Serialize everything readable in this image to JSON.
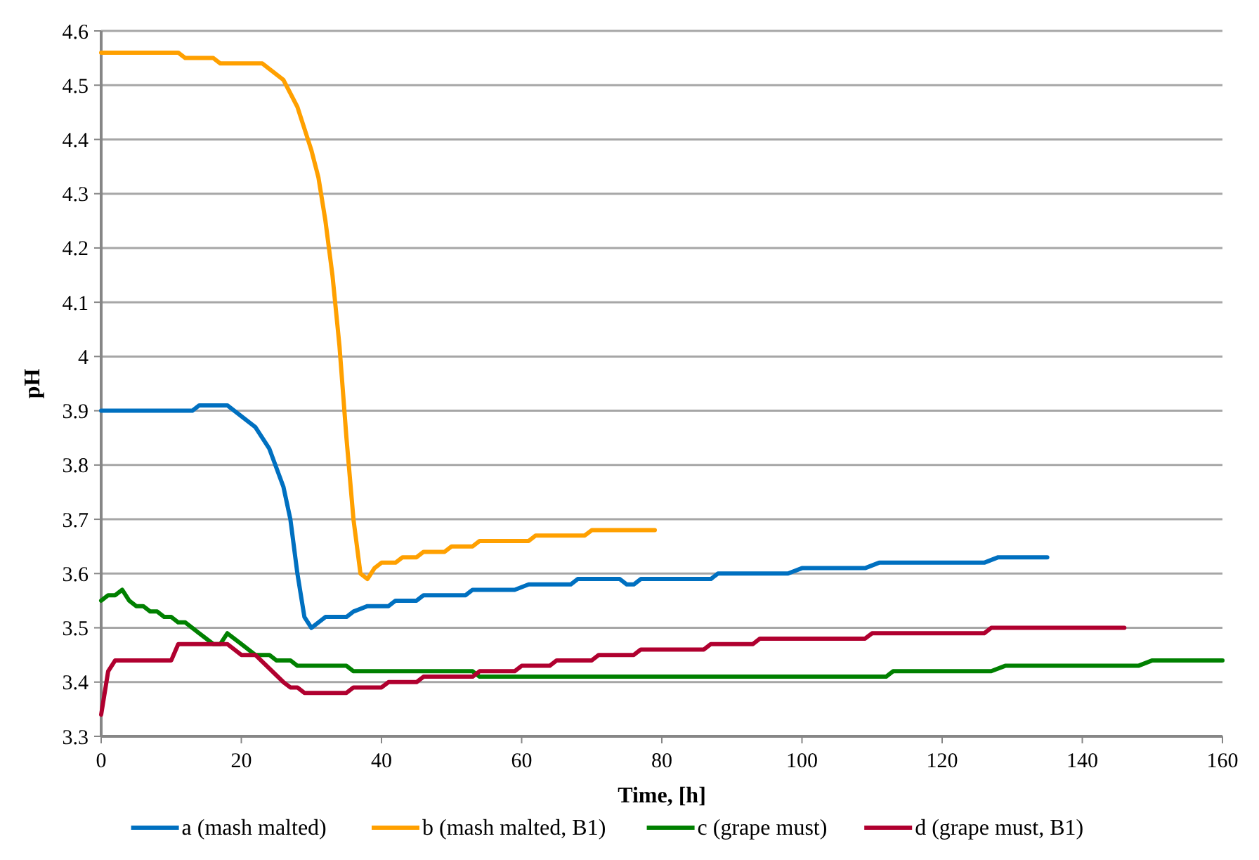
{
  "chart_data": {
    "type": "line",
    "xlabel": "Time, [h]",
    "ylabel": "pH",
    "xlim": [
      0,
      160
    ],
    "xticks": [
      0,
      20,
      40,
      60,
      80,
      100,
      120,
      140,
      160
    ],
    "ylim": [
      3.3,
      4.6
    ],
    "yticks": [
      3.3,
      3.4,
      3.5,
      3.6,
      3.7,
      3.8,
      3.9,
      4,
      4.1,
      4.2,
      4.3,
      4.4,
      4.5,
      4.6
    ],
    "grid": "y",
    "legend": "bottom",
    "marker": "none",
    "line_style": "solid",
    "series": [
      {
        "name": "a  (mash malted)",
        "color": "#0070c0",
        "x": [
          0,
          13,
          14,
          18,
          20,
          22,
          24,
          26,
          27,
          28,
          29,
          30,
          31,
          32,
          35,
          36,
          38,
          41,
          42,
          45,
          46,
          52,
          53,
          59,
          61,
          67,
          68,
          74,
          75,
          76,
          77,
          87,
          88,
          98,
          100,
          109,
          111,
          126,
          128,
          135
        ],
        "values": [
          3.9,
          3.9,
          3.91,
          3.91,
          3.89,
          3.87,
          3.83,
          3.76,
          3.7,
          3.6,
          3.52,
          3.5,
          3.51,
          3.52,
          3.52,
          3.53,
          3.54,
          3.54,
          3.55,
          3.55,
          3.56,
          3.56,
          3.57,
          3.57,
          3.58,
          3.58,
          3.59,
          3.59,
          3.58,
          3.58,
          3.59,
          3.59,
          3.6,
          3.6,
          3.61,
          3.61,
          3.62,
          3.62,
          3.63,
          3.63
        ]
      },
      {
        "name": "b (mash malted, B1)",
        "color": "#ffa000",
        "x": [
          0,
          11,
          12,
          16,
          17,
          23,
          24,
          26,
          28,
          30,
          31,
          32,
          33,
          34,
          35,
          36,
          37,
          38,
          39,
          40,
          42,
          43,
          45,
          46,
          49,
          50,
          53,
          54,
          61,
          62,
          69,
          70,
          79
        ],
        "values": [
          4.56,
          4.56,
          4.55,
          4.55,
          4.54,
          4.54,
          4.53,
          4.51,
          4.46,
          4.38,
          4.33,
          4.25,
          4.15,
          4.02,
          3.85,
          3.7,
          3.6,
          3.59,
          3.61,
          3.62,
          3.62,
          3.63,
          3.63,
          3.64,
          3.64,
          3.65,
          3.65,
          3.66,
          3.66,
          3.67,
          3.67,
          3.68,
          3.68
        ]
      },
      {
        "name": "c (grape must)",
        "color": "#008000",
        "x": [
          0,
          1,
          2,
          3,
          4,
          5,
          6,
          7,
          8,
          9,
          10,
          11,
          12,
          14,
          16,
          17,
          18,
          20,
          22,
          24,
          25,
          27,
          28,
          35,
          36,
          53,
          54,
          112,
          113,
          127,
          129,
          148,
          150,
          160
        ],
        "values": [
          3.55,
          3.56,
          3.56,
          3.57,
          3.55,
          3.54,
          3.54,
          3.53,
          3.53,
          3.52,
          3.52,
          3.51,
          3.51,
          3.49,
          3.47,
          3.47,
          3.49,
          3.47,
          3.45,
          3.45,
          3.44,
          3.44,
          3.43,
          3.43,
          3.42,
          3.42,
          3.41,
          3.41,
          3.42,
          3.42,
          3.43,
          3.43,
          3.44,
          3.44
        ]
      },
      {
        "name": "d (grape must, B1)",
        "color": "#b0002f",
        "x": [
          0,
          1,
          2,
          10,
          11,
          18,
          20,
          22,
          26,
          27,
          28,
          29,
          35,
          36,
          40,
          41,
          45,
          46,
          53,
          54,
          59,
          60,
          64,
          65,
          70,
          71,
          76,
          77,
          86,
          87,
          93,
          94,
          109,
          110,
          126,
          127,
          146
        ],
        "values": [
          3.34,
          3.42,
          3.44,
          3.44,
          3.47,
          3.47,
          3.45,
          3.45,
          3.4,
          3.39,
          3.39,
          3.38,
          3.38,
          3.39,
          3.39,
          3.4,
          3.4,
          3.41,
          3.41,
          3.42,
          3.42,
          3.43,
          3.43,
          3.44,
          3.44,
          3.45,
          3.45,
          3.46,
          3.46,
          3.47,
          3.47,
          3.48,
          3.48,
          3.49,
          3.49,
          3.5,
          3.5
        ]
      }
    ]
  }
}
